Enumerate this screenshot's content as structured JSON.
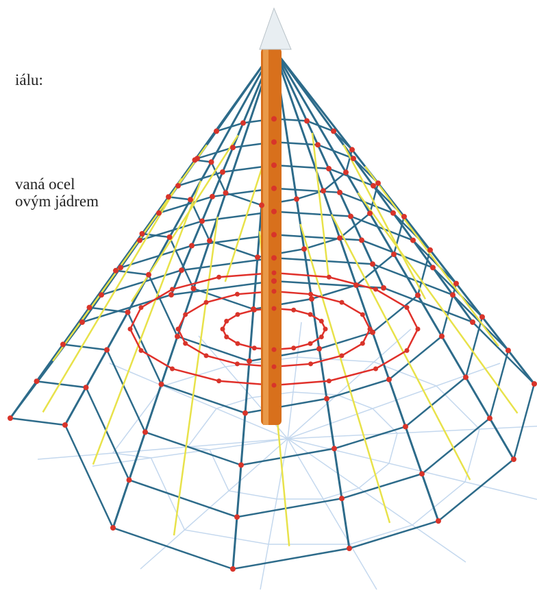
{
  "document": {
    "lines": [
      "iálu:",
      "vaná ocel",
      "ovým jádrem"
    ]
  }
}
